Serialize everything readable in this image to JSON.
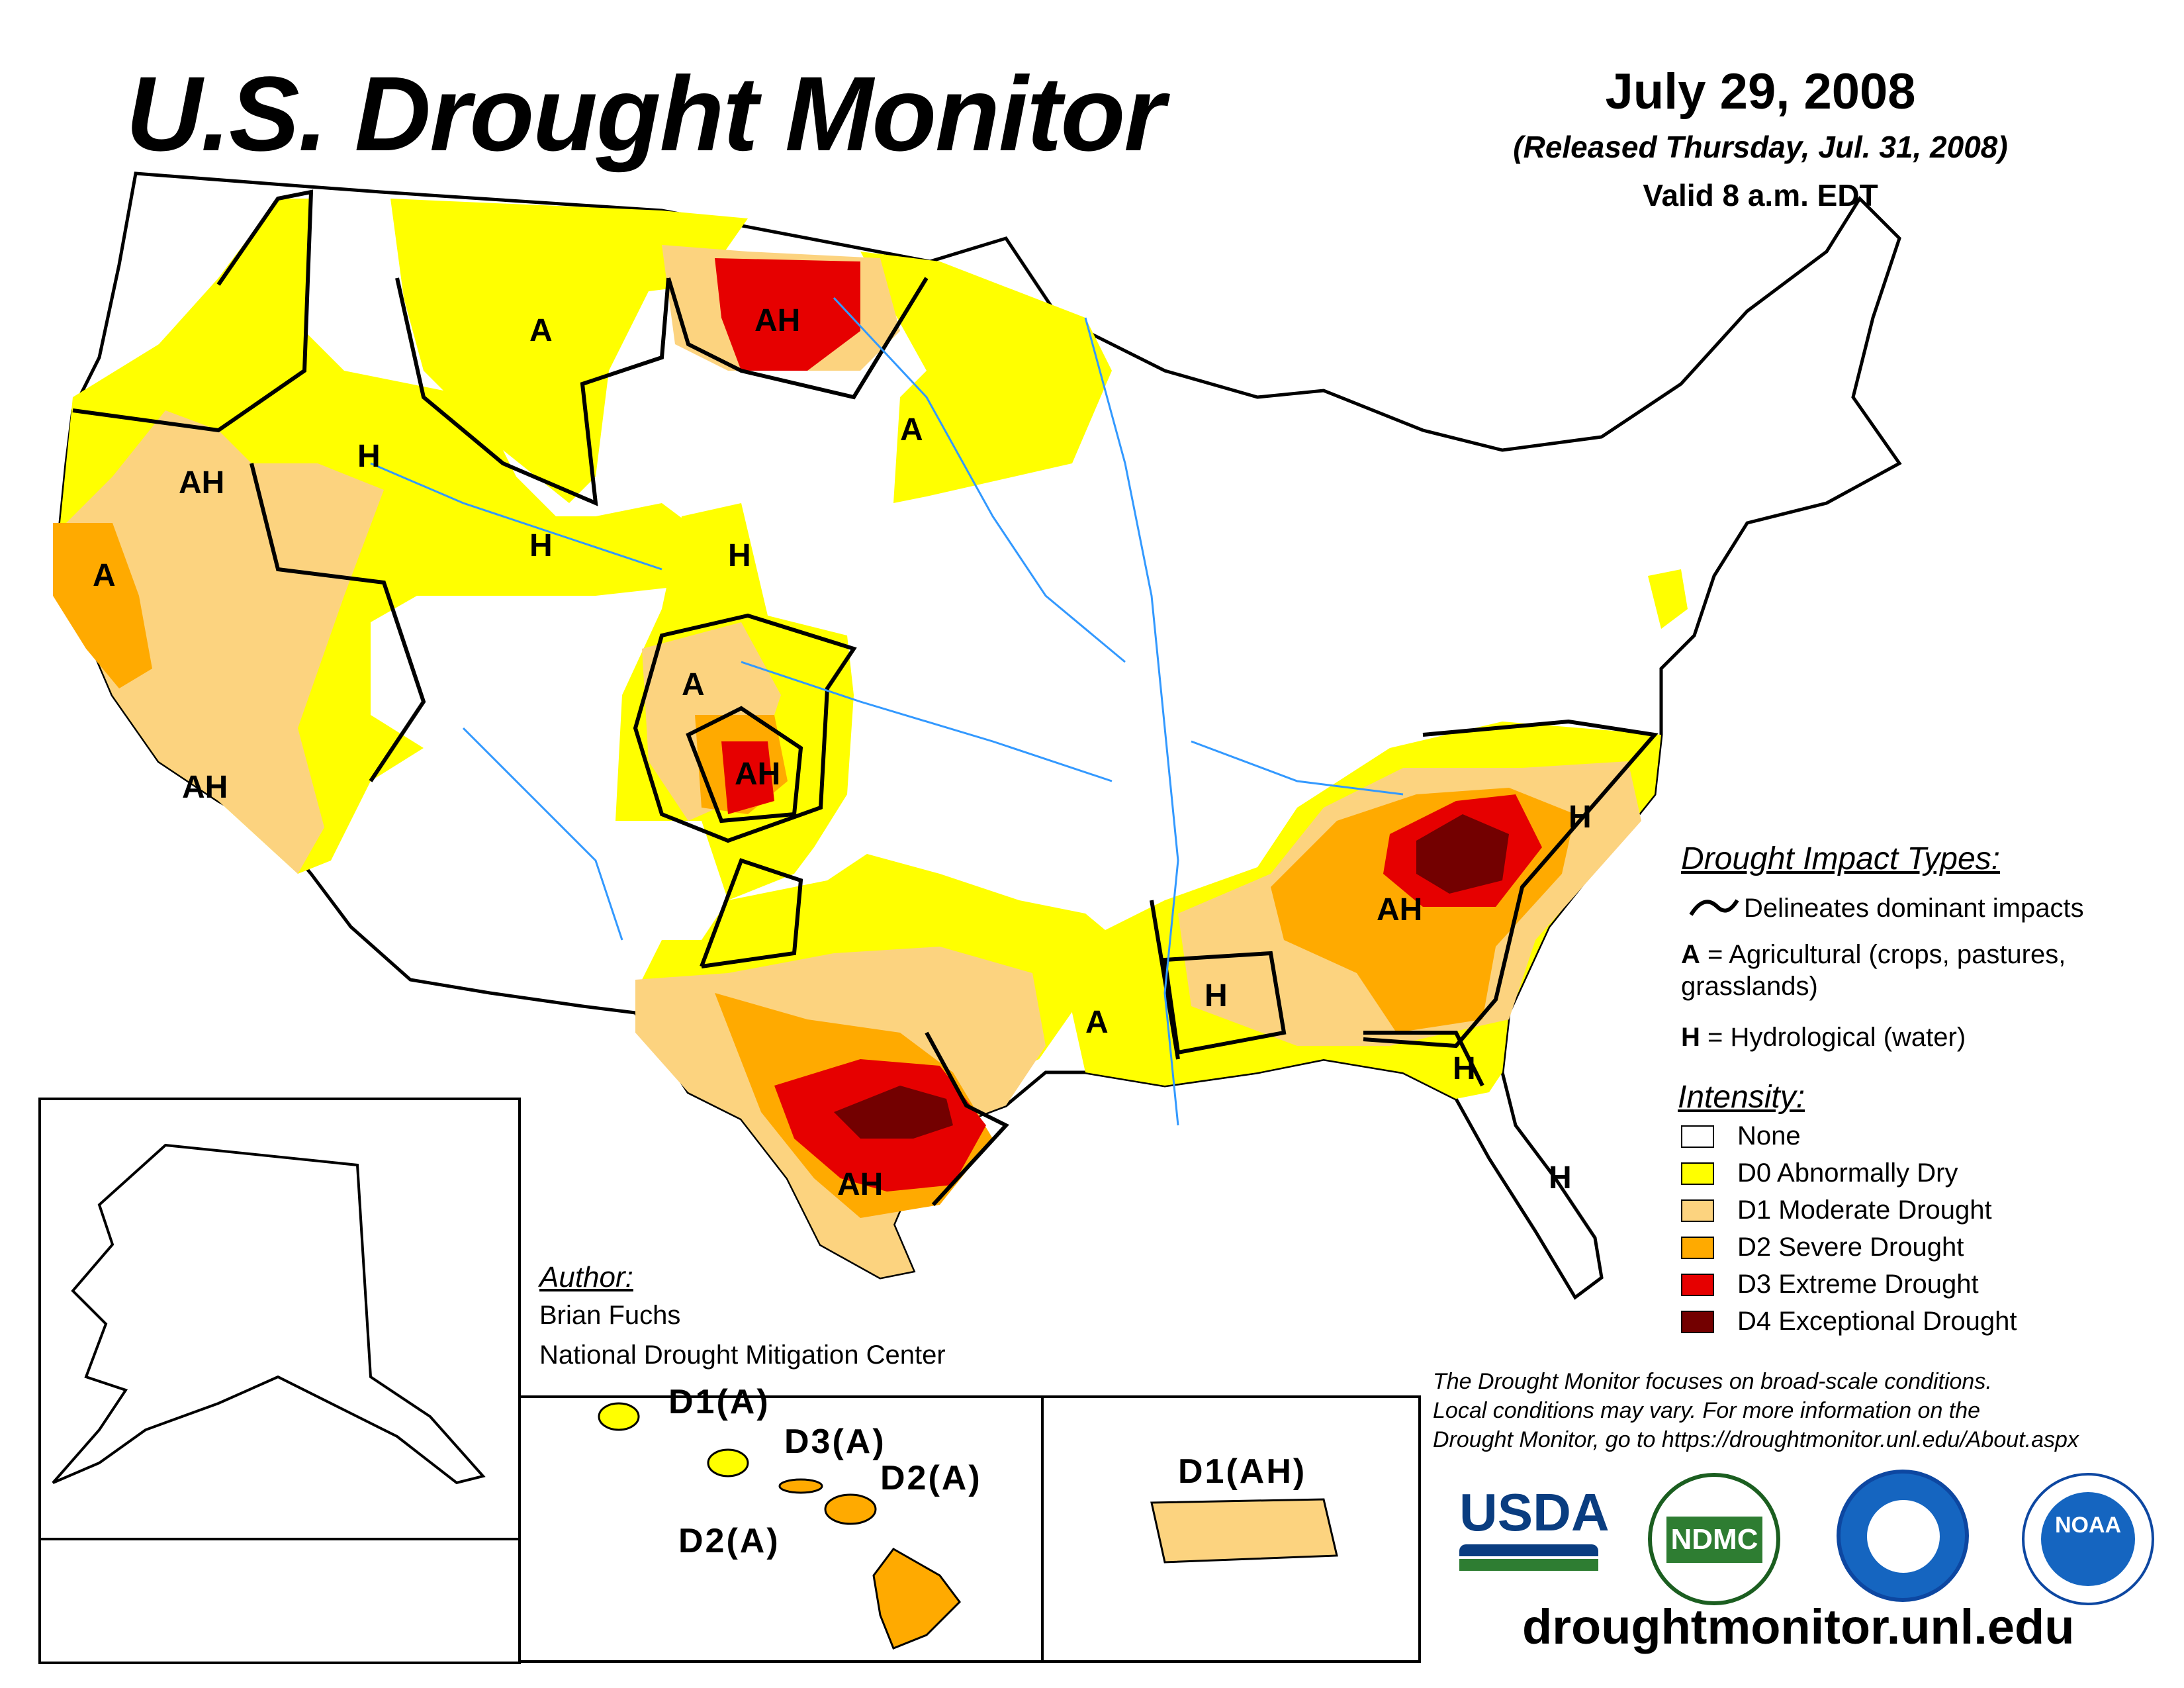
{
  "title": "U.S. Drought Monitor",
  "date": "July 29, 2008",
  "released": "(Released Thursday, Jul. 31, 2008)",
  "valid": "Valid 8 a.m. EDT",
  "impact_types": {
    "heading": "Drought Impact Types:",
    "delineates": "Delineates dominant impacts",
    "a_key": "A",
    "a_text": " = Agricultural (crops, pastures,",
    "a_text2": "grasslands)",
    "h_key": "H",
    "h_text": " = Hydrological (water)"
  },
  "intensity": {
    "heading": "Intensity:",
    "levels": [
      {
        "label": "None",
        "color": "#ffffff"
      },
      {
        "label": "D0 Abnormally Dry",
        "color": "#ffff00"
      },
      {
        "label": "D1 Moderate Drought",
        "color": "#fcd37f"
      },
      {
        "label": "D2 Severe Drought",
        "color": "#ffaa00"
      },
      {
        "label": "D3 Extreme Drought",
        "color": "#e60000"
      },
      {
        "label": "D4 Exceptional Drought",
        "color": "#730000"
      }
    ]
  },
  "author": {
    "heading": "Author:",
    "name": "Brian Fuchs",
    "org": "National Drought Mitigation Center"
  },
  "disclaimer": [
    "The Drought Monitor focuses on broad-scale conditions.",
    "Local conditions may vary. For more information on the",
    "Drought Monitor, go to https://droughtmonitor.unl.edu/About.aspx"
  ],
  "website": "droughtmonitor.unl.edu",
  "map_labels": {
    "l1": "A",
    "l2": "AH",
    "l3": "A",
    "l4": "AH",
    "l5": "H",
    "l6": "A",
    "l7": "H",
    "l8": "H",
    "l9": "A",
    "l10": "AH",
    "l11": "AH",
    "l12": "A",
    "l13": "H",
    "l14": "AH",
    "l15": "H",
    "l16": "H",
    "l17": "H",
    "l18": "AH"
  },
  "inset_labels": {
    "hi1": "D1(A)",
    "hi2": "D3(A)",
    "hi3": "D2(A)",
    "hi4": "D2(A)",
    "pr": "D1(AH)"
  },
  "logos": {
    "usda": "USDA",
    "ndmc": "NDMC",
    "noaa": "NOAA"
  }
}
